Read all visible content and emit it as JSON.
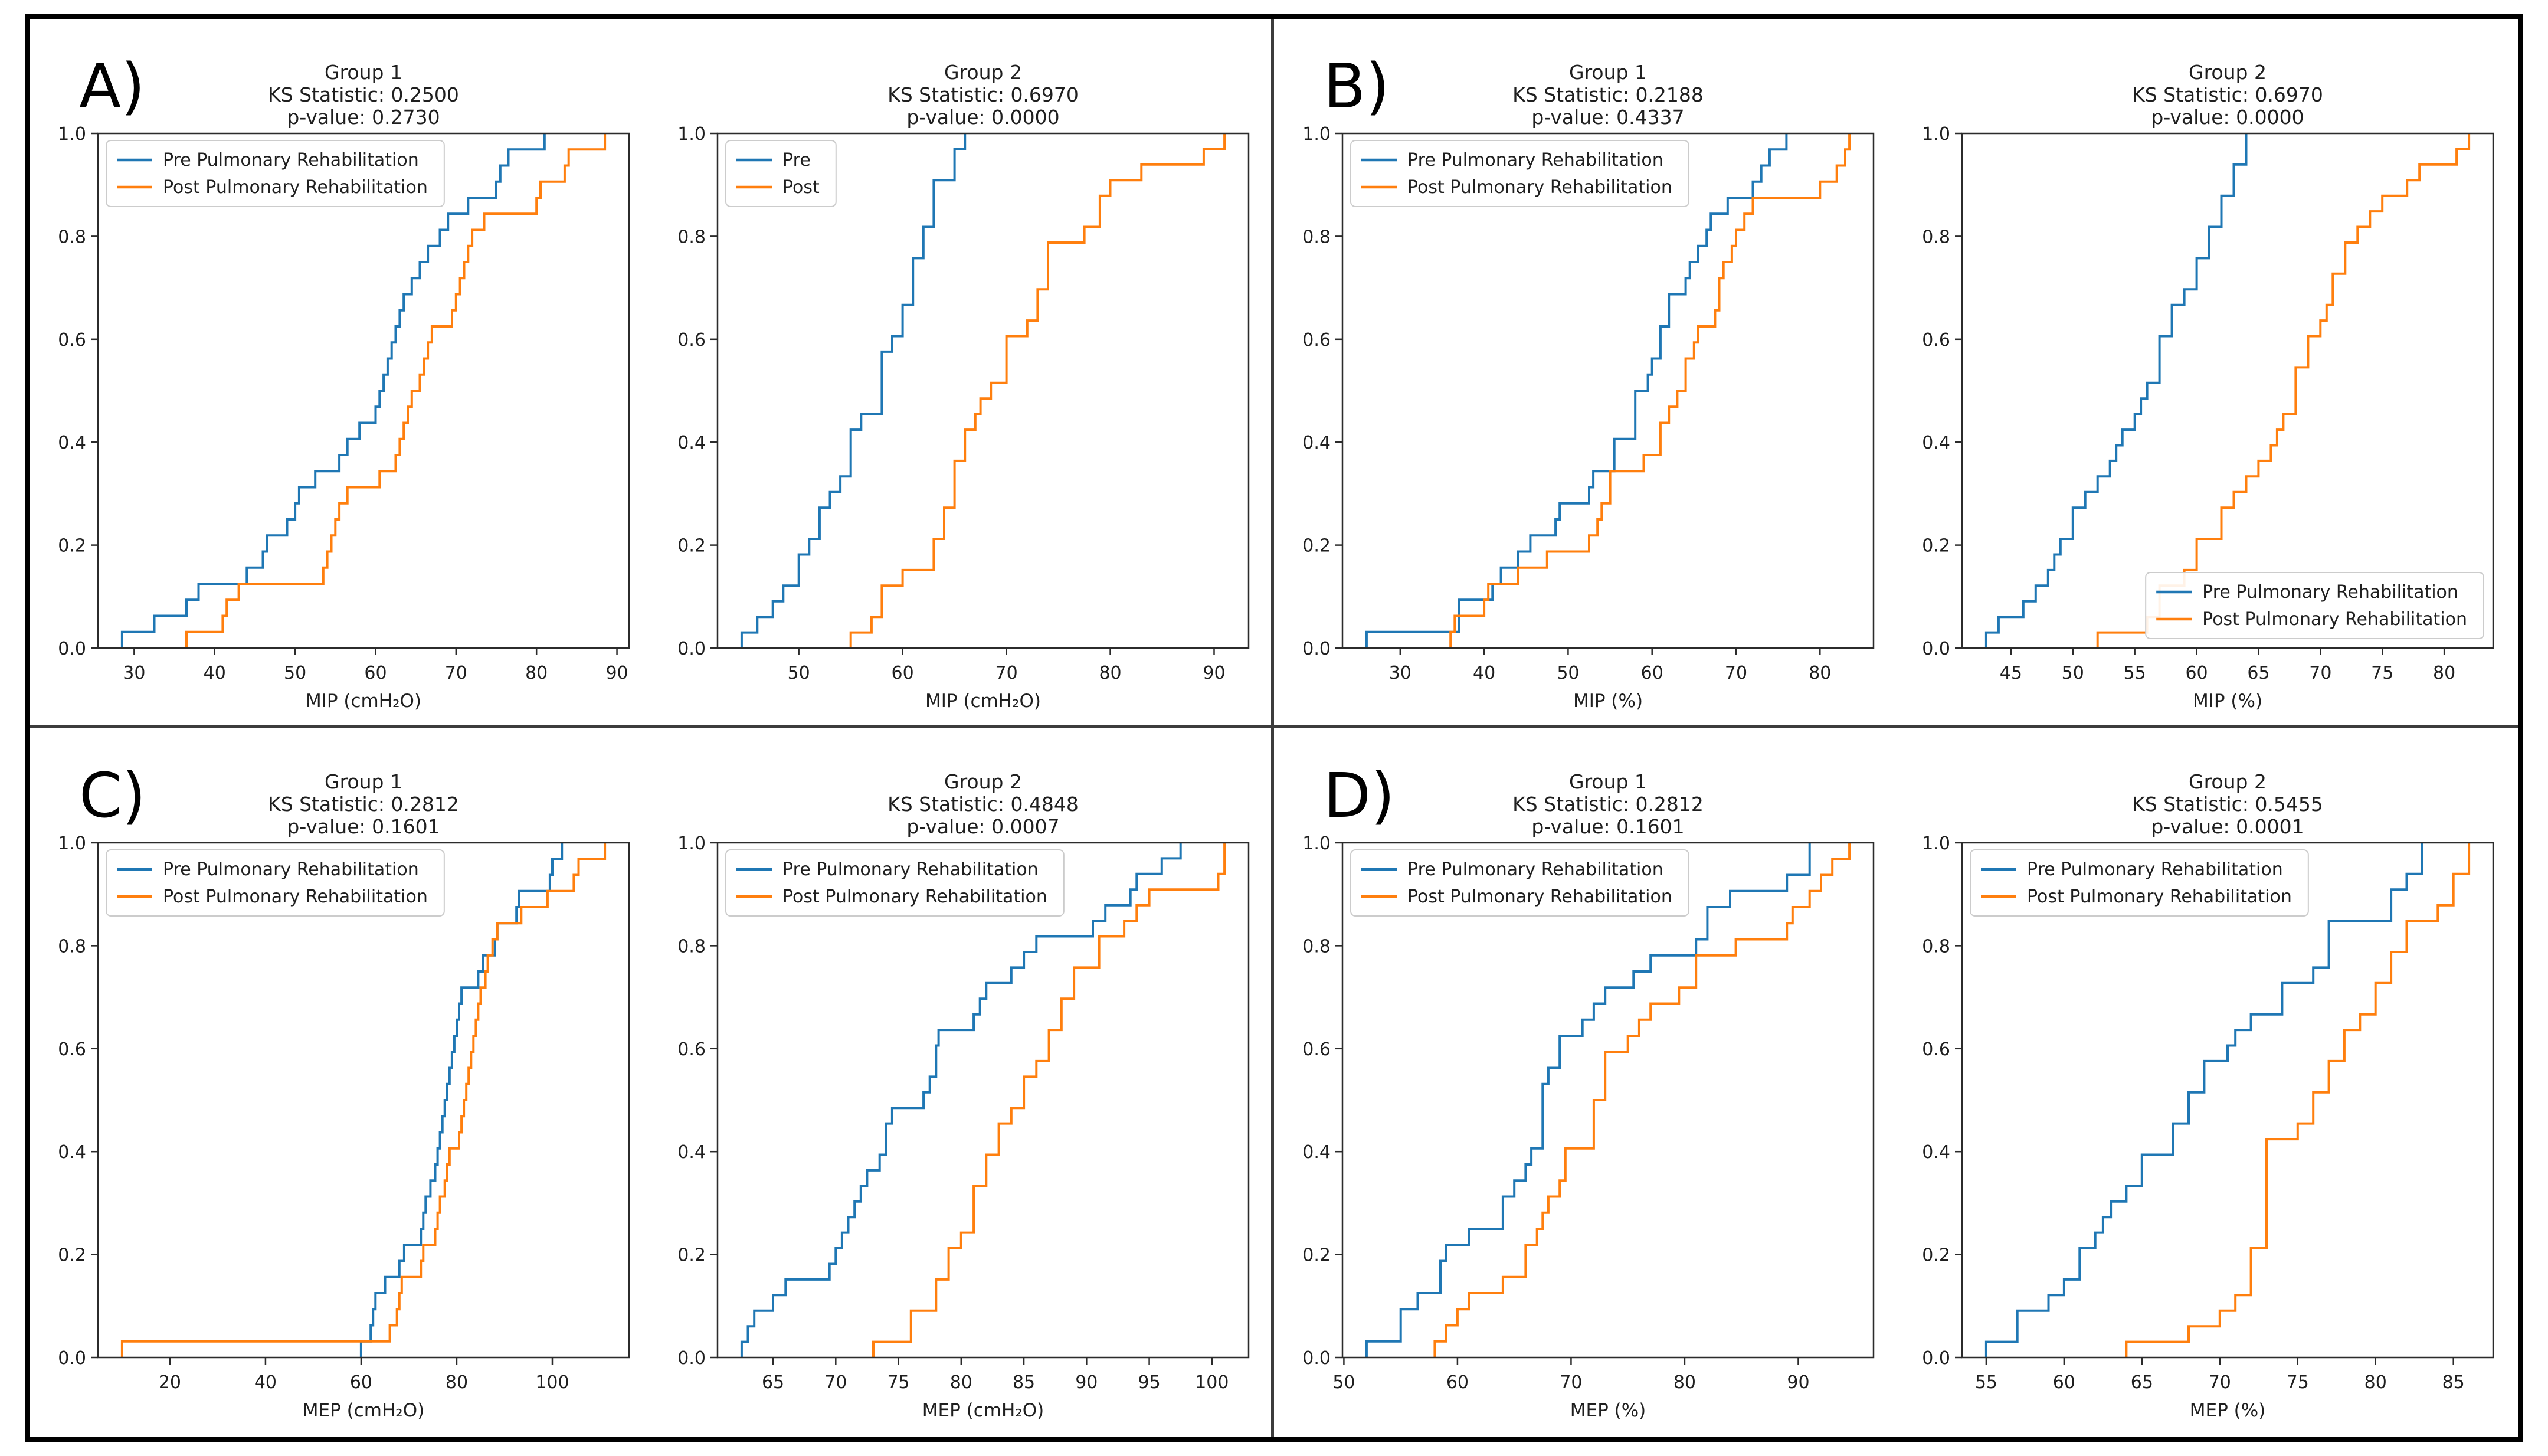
{
  "figure": {
    "background": "#ffffff",
    "outer_border_color": "#000000",
    "divider_color": "#3c3c3c",
    "axis_color": "#2b2b2b",
    "text_color": "#1f1f1f",
    "legend_border_color": "#cccccc",
    "series_colors": {
      "pre": "#1f77b4",
      "post": "#ff7f0e"
    }
  },
  "panels": [
    {
      "label": "A)"
    },
    {
      "label": "B)"
    },
    {
      "label": "C)"
    },
    {
      "label": "D)"
    }
  ],
  "chart_data": [
    {
      "id": "A-group1",
      "panel": "A",
      "type": "line",
      "title": "Group 1",
      "subtitle1": "KS Statistic: 0.2500",
      "subtitle2": "p-value: 0.2730",
      "xlabel": "MIP (cmH₂O)",
      "xticks": [
        30,
        40,
        50,
        60,
        70,
        80,
        90
      ],
      "yticks": [
        0.0,
        0.2,
        0.4,
        0.6,
        0.8,
        1.0
      ],
      "ylim": [
        0,
        1
      ],
      "grid": false,
      "legend": {
        "position": "upper-left",
        "entries": [
          {
            "label": "Pre Pulmonary Rehabilitation",
            "color": "pre"
          },
          {
            "label": "Post Pulmonary Rehabilitation",
            "color": "post"
          }
        ]
      },
      "series": [
        {
          "name": "Pre Pulmonary Rehabilitation",
          "key": "pre",
          "samples": [
            28.5,
            32.5,
            36.5,
            38,
            44,
            46,
            46.5,
            49,
            50,
            50.5,
            52.5,
            55.5,
            56.5,
            58,
            60,
            60.5,
            61,
            61.5,
            62,
            62.5,
            63,
            63.5,
            64.5,
            65.5,
            66.5,
            68,
            69,
            71.5,
            75,
            75.5,
            76.5,
            81
          ]
        },
        {
          "name": "Post Pulmonary Rehabilitation",
          "key": "post",
          "samples": [
            36.5,
            41,
            41.5,
            43,
            53.5,
            54,
            54.5,
            55,
            55.5,
            56.5,
            60.5,
            62.5,
            63,
            63.5,
            64,
            64.5,
            65.5,
            66,
            66.5,
            67,
            69.5,
            70,
            70.5,
            71,
            71.5,
            72,
            73.5,
            80,
            80.5,
            83.5,
            84,
            88.5
          ]
        }
      ]
    },
    {
      "id": "A-group2",
      "panel": "A",
      "type": "line",
      "title": "Group 2",
      "subtitle1": "KS Statistic: 0.6970",
      "subtitle2": "p-value: 0.0000",
      "xlabel": "MIP (cmH₂O)",
      "xticks": [
        50,
        60,
        70,
        80,
        90
      ],
      "yticks": [
        0.0,
        0.2,
        0.4,
        0.6,
        0.8,
        1.0
      ],
      "ylim": [
        0,
        1
      ],
      "grid": false,
      "legend": {
        "position": "upper-left",
        "entries": [
          {
            "label": "Pre",
            "color": "pre"
          },
          {
            "label": "Post",
            "color": "post"
          }
        ]
      },
      "series": [
        {
          "name": "Pre",
          "key": "pre",
          "samples": [
            44.5,
            46,
            47.5,
            48.5,
            50,
            50,
            51,
            52,
            52,
            53,
            54,
            55,
            55,
            55,
            56,
            58,
            58,
            58,
            58,
            59,
            60,
            60,
            61,
            61,
            61,
            62,
            62,
            63,
            63,
            63,
            65,
            65,
            66
          ]
        },
        {
          "name": "Post",
          "key": "post",
          "samples": [
            55,
            57,
            58,
            58,
            60,
            63,
            63,
            64,
            64,
            65,
            65,
            65,
            66,
            66,
            67,
            67.5,
            68.5,
            70,
            70,
            70,
            72,
            73,
            73,
            74,
            74,
            74,
            77.5,
            79,
            79,
            80,
            83,
            89,
            91
          ]
        }
      ]
    },
    {
      "id": "B-group1",
      "panel": "B",
      "type": "line",
      "title": "Group 1",
      "subtitle1": "KS Statistic: 0.2188",
      "subtitle2": "p-value: 0.4337",
      "xlabel": "MIP (%)",
      "xticks": [
        30,
        40,
        50,
        60,
        70,
        80
      ],
      "yticks": [
        0.0,
        0.2,
        0.4,
        0.6,
        0.8,
        1.0
      ],
      "ylim": [
        0,
        1
      ],
      "grid": false,
      "legend": {
        "position": "upper-left",
        "entries": [
          {
            "label": "Pre Pulmonary Rehabilitation",
            "color": "pre"
          },
          {
            "label": "Post Pulmonary Rehabilitation",
            "color": "post"
          }
        ]
      },
      "series": [
        {
          "name": "Pre Pulmonary Rehabilitation",
          "key": "pre",
          "samples": [
            26,
            37,
            37,
            41,
            42,
            44,
            45.5,
            48.5,
            49,
            52.5,
            53,
            55.5,
            55.5,
            58,
            58,
            58,
            59.5,
            60,
            61,
            61,
            62,
            62,
            64,
            64.5,
            65.5,
            66.5,
            67,
            69,
            72,
            73,
            74,
            76
          ]
        },
        {
          "name": "Post Pulmonary Rehabilitation",
          "key": "post",
          "samples": [
            36,
            36.5,
            40,
            40.5,
            44,
            47.5,
            52.5,
            53.5,
            54,
            55,
            55,
            59,
            61,
            61,
            62,
            63,
            64,
            64,
            65,
            65.5,
            67.5,
            68,
            68,
            68.5,
            69.5,
            70,
            71,
            72,
            80,
            82,
            83,
            83.5
          ]
        }
      ]
    },
    {
      "id": "B-group2",
      "panel": "B",
      "type": "line",
      "title": "Group 2",
      "subtitle1": "KS Statistic: 0.6970",
      "subtitle2": "p-value: 0.0000",
      "xlabel": "MIP (%)",
      "xticks": [
        45,
        50,
        55,
        60,
        65,
        70,
        75,
        80
      ],
      "yticks": [
        0.0,
        0.2,
        0.4,
        0.6,
        0.8,
        1.0
      ],
      "ylim": [
        0,
        1
      ],
      "grid": false,
      "legend": {
        "position": "lower-right",
        "entries": [
          {
            "label": "Pre Pulmonary Rehabilitation",
            "color": "pre"
          },
          {
            "label": "Post Pulmonary Rehabilitation",
            "color": "post"
          }
        ]
      },
      "series": [
        {
          "name": "Pre Pulmonary Rehabilitation",
          "key": "pre",
          "samples": [
            43,
            44,
            46,
            47,
            48,
            48.5,
            49,
            50,
            50,
            51,
            52,
            53,
            53.5,
            54,
            55,
            55.5,
            56,
            57,
            57,
            57,
            58,
            58,
            59,
            60,
            60,
            61,
            61,
            62,
            62,
            63,
            63,
            64,
            64
          ]
        },
        {
          "name": "Post Pulmonary Rehabilitation",
          "key": "post",
          "samples": [
            52,
            56,
            57,
            57,
            59,
            60,
            60,
            62,
            62,
            63,
            64,
            65,
            66,
            66.5,
            67,
            68,
            68,
            68,
            69,
            69,
            70,
            70.5,
            71,
            71,
            72,
            72,
            73,
            74,
            75,
            77,
            78,
            81,
            82
          ]
        }
      ]
    },
    {
      "id": "C-group1",
      "panel": "C",
      "type": "line",
      "title": "Group 1",
      "subtitle1": "KS Statistic: 0.2812",
      "subtitle2": "p-value: 0.1601",
      "xlabel": "MEP (cmH₂O)",
      "xticks": [
        20,
        40,
        60,
        80,
        100
      ],
      "yticks": [
        0.0,
        0.2,
        0.4,
        0.6,
        0.8,
        1.0
      ],
      "ylim": [
        0,
        1
      ],
      "grid": false,
      "legend": {
        "position": "upper-left",
        "entries": [
          {
            "label": "Pre Pulmonary Rehabilitation",
            "color": "pre"
          },
          {
            "label": "Post Pulmonary Rehabilitation",
            "color": "post"
          }
        ]
      },
      "series": [
        {
          "name": "Pre Pulmonary Rehabilitation",
          "key": "pre",
          "samples": [
            60,
            62,
            62.5,
            63,
            65,
            68,
            69,
            72.5,
            73,
            73.5,
            74.5,
            75.5,
            76,
            76.5,
            77,
            77.5,
            78,
            78.5,
            79,
            79.5,
            80,
            80.5,
            81,
            84.5,
            85.5,
            88,
            88.5,
            92.5,
            93,
            99.5,
            100,
            102
          ]
        },
        {
          "name": "Post Pulmonary Rehabilitation",
          "key": "post",
          "samples": [
            10,
            66,
            67.5,
            68,
            68.5,
            72.5,
            73,
            75.5,
            76,
            76.5,
            77.5,
            78,
            78.5,
            80.5,
            81,
            81.5,
            82,
            82.5,
            83,
            83.5,
            84,
            84.5,
            85,
            86,
            86.5,
            87.5,
            88.5,
            93.5,
            99,
            104.5,
            105.5,
            111
          ]
        }
      ]
    },
    {
      "id": "C-group2",
      "panel": "C",
      "type": "line",
      "title": "Group 2",
      "subtitle1": "KS Statistic: 0.4848",
      "subtitle2": "p-value: 0.0007",
      "xlabel": "MEP (cmH₂O)",
      "xticks": [
        65,
        70,
        75,
        80,
        85,
        90,
        95,
        100
      ],
      "yticks": [
        0.0,
        0.2,
        0.4,
        0.6,
        0.8,
        1.0
      ],
      "ylim": [
        0,
        1
      ],
      "grid": false,
      "legend": {
        "position": "upper-left",
        "entries": [
          {
            "label": "Pre Pulmonary Rehabilitation",
            "color": "pre"
          },
          {
            "label": "Post Pulmonary Rehabilitation",
            "color": "post"
          }
        ]
      },
      "series": [
        {
          "name": "Pre Pulmonary Rehabilitation",
          "key": "pre",
          "samples": [
            62.5,
            63,
            63.5,
            65,
            66,
            69.5,
            70,
            70.5,
            71,
            71.5,
            72,
            72.5,
            73.5,
            74,
            74,
            74.5,
            77,
            77.5,
            78,
            78,
            78.2,
            81,
            81.5,
            82,
            84,
            85,
            86,
            90.5,
            91.5,
            93.5,
            94,
            96,
            97.5
          ]
        },
        {
          "name": "Post Pulmonary Rehabilitation",
          "key": "post",
          "samples": [
            73,
            76,
            76,
            78,
            78,
            79,
            79,
            80,
            81,
            81,
            81,
            82,
            82,
            83,
            83,
            84,
            85,
            85,
            86,
            87,
            87,
            88,
            88,
            89,
            89,
            91,
            91,
            93,
            94,
            95,
            100.5,
            101,
            101
          ]
        }
      ]
    },
    {
      "id": "D-group1",
      "panel": "D",
      "type": "line",
      "title": "Group 1",
      "subtitle1": "KS Statistic: 0.2812",
      "subtitle2": "p-value: 0.1601",
      "xlabel": "MEP (%)",
      "xticks": [
        50,
        60,
        70,
        80,
        90
      ],
      "yticks": [
        0.0,
        0.2,
        0.4,
        0.6,
        0.8,
        1.0
      ],
      "ylim": [
        0,
        1
      ],
      "grid": false,
      "legend": {
        "position": "upper-left",
        "entries": [
          {
            "label": "Pre Pulmonary Rehabilitation",
            "color": "pre"
          },
          {
            "label": "Post Pulmonary Rehabilitation",
            "color": "post"
          }
        ]
      },
      "series": [
        {
          "name": "Pre Pulmonary Rehabilitation",
          "key": "pre",
          "samples": [
            52,
            55,
            55,
            56.5,
            58.5,
            58.5,
            59,
            61,
            64,
            64,
            65,
            66,
            66.5,
            67.5,
            67.5,
            67.5,
            67.5,
            68,
            69,
            69,
            71,
            72,
            73,
            75.5,
            77,
            81,
            82,
            82,
            84,
            89,
            91,
            91
          ]
        },
        {
          "name": "Post Pulmonary Rehabilitation",
          "key": "post",
          "samples": [
            58,
            59,
            60,
            61,
            64,
            66,
            66,
            67,
            67.5,
            68,
            69,
            69.5,
            69.5,
            72,
            72,
            72,
            73,
            73,
            73,
            75,
            76,
            77,
            79.5,
            81,
            81,
            84.5,
            89,
            89.5,
            91,
            92,
            93,
            94.5
          ]
        }
      ]
    },
    {
      "id": "D-group2",
      "panel": "D",
      "type": "line",
      "title": "Group 2",
      "subtitle1": "KS Statistic: 0.5455",
      "subtitle2": "p-value: 0.0001",
      "xlabel": "MEP (%)",
      "xticks": [
        55,
        60,
        65,
        70,
        75,
        80,
        85
      ],
      "yticks": [
        0.0,
        0.2,
        0.4,
        0.6,
        0.8,
        1.0
      ],
      "ylim": [
        0,
        1
      ],
      "grid": false,
      "legend": {
        "position": "upper-left",
        "entries": [
          {
            "label": "Pre Pulmonary Rehabilitation",
            "color": "pre"
          },
          {
            "label": "Post Pulmonary Rehabilitation",
            "color": "post"
          }
        ]
      },
      "series": [
        {
          "name": "Pre Pulmonary Rehabilitation",
          "key": "pre",
          "samples": [
            55,
            57,
            57,
            59,
            60,
            61,
            61,
            62,
            62.5,
            63,
            64,
            65,
            65,
            67,
            67,
            68,
            68,
            69,
            69,
            70.5,
            71,
            72,
            74,
            74,
            76,
            77,
            77,
            77,
            81,
            81,
            82,
            83,
            83
          ]
        },
        {
          "name": "Post Pulmonary Rehabilitation",
          "key": "post",
          "samples": [
            64,
            68,
            70,
            71,
            72,
            72,
            72,
            73,
            73,
            73,
            73,
            73,
            73,
            73,
            75,
            76,
            76,
            77,
            77,
            78,
            78,
            79,
            80,
            80,
            81,
            81,
            82,
            82,
            84,
            85,
            85,
            86,
            86
          ]
        }
      ]
    }
  ]
}
